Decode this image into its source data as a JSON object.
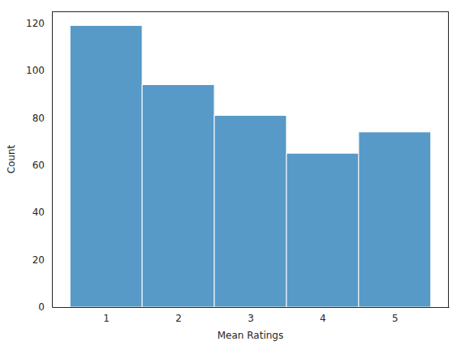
{
  "chart_data": {
    "type": "histogram",
    "x_label": "Mean Ratings",
    "y_label": "Count",
    "bins": [
      0.5,
      1.5,
      2.5,
      3.5,
      4.5,
      5.5
    ],
    "counts": [
      119,
      94,
      81,
      65,
      74
    ],
    "color": "#1f77b4",
    "xlim": [
      0.25,
      5.75
    ],
    "xticks": [
      1,
      2,
      3,
      4,
      5
    ],
    "ylim": [
      0,
      124.95
    ],
    "yticks": [
      0,
      20,
      40,
      60,
      80,
      100,
      120
    ],
    "grid": false
  }
}
